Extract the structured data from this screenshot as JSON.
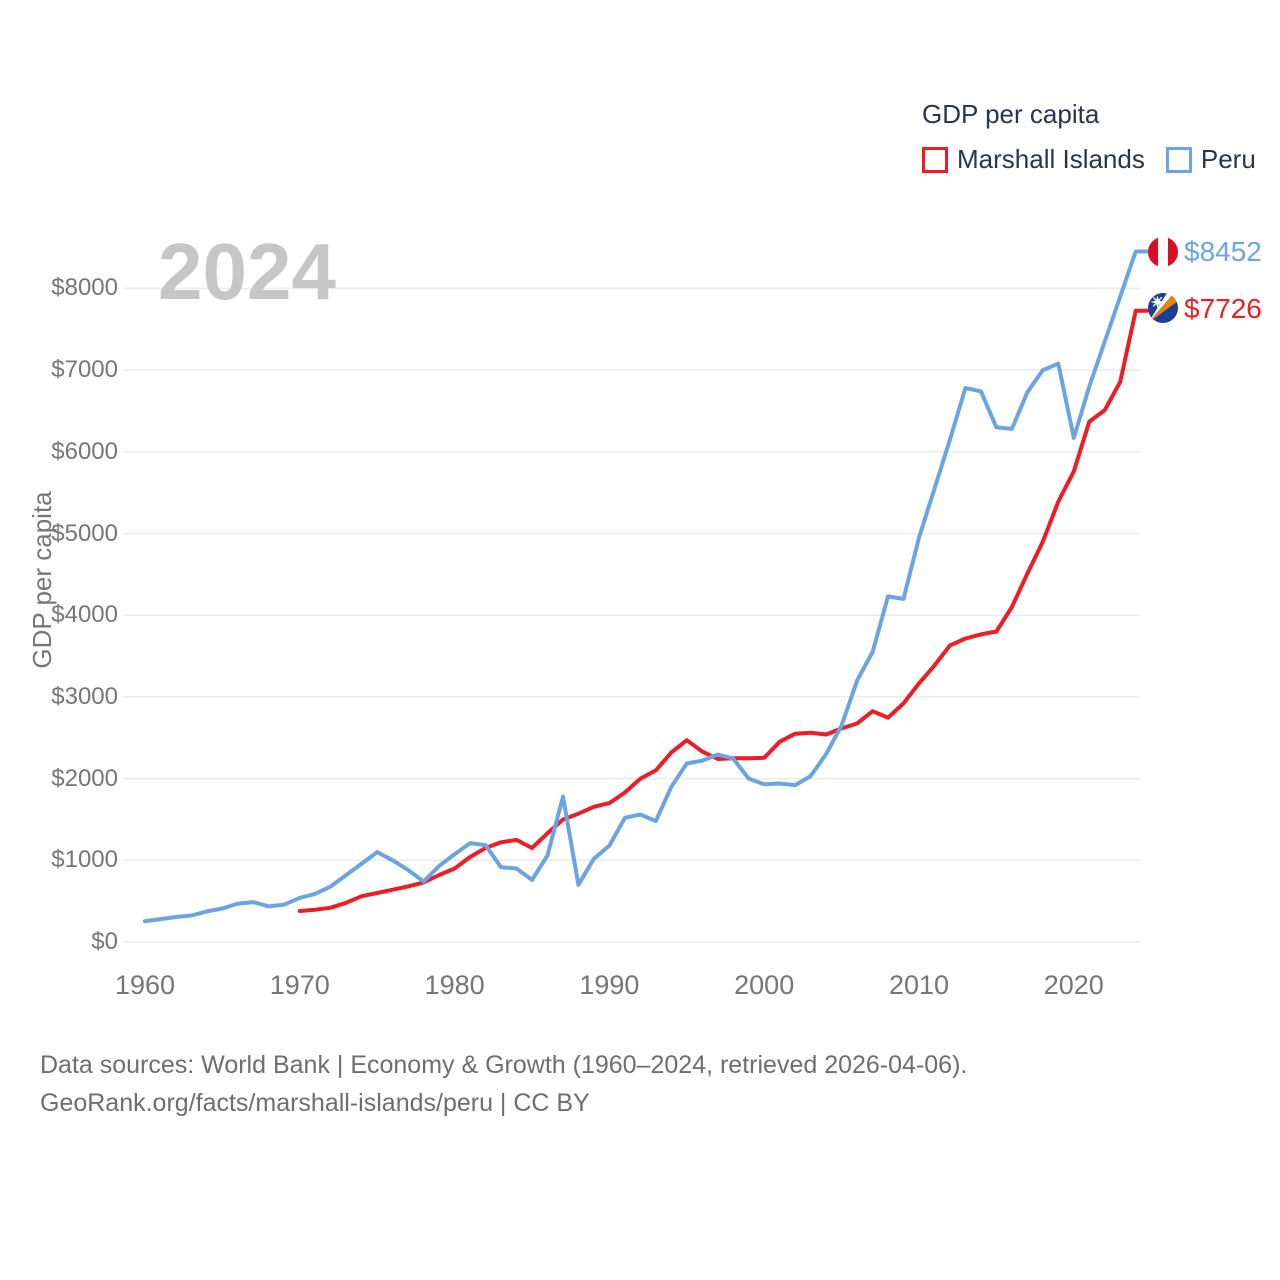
{
  "watermark_year": "2024",
  "source": {
    "line1": "Data sources: World Bank | Economy & Growth (1960–2024, retrieved 2026-04-06).",
    "line2": "GeoRank.org/facts/marshall-islands/peru | CC BY"
  },
  "colors": {
    "marshall_islands_red": "#ee1c23",
    "peru_blue": "#6aa4e2",
    "legend_text": "#26374b",
    "axis_text": "#767676",
    "gridline": "#ebebeb",
    "watermark": "#c6c6c6",
    "source_text": "#6e6e6e"
  },
  "chart_data": {
    "type": "line",
    "title": "GDP per capita",
    "ylabel": "GDP per capita",
    "watermark": "2024",
    "xlim": [
      1960,
      2024
    ],
    "ylim": [
      0,
      8550
    ],
    "grid": "horizontal",
    "legend_position": "top-right",
    "x_ticks": [
      {
        "label": "1960",
        "v": 1960
      },
      {
        "label": "1970",
        "v": 1970
      },
      {
        "label": "1980",
        "v": 1980
      },
      {
        "label": "1990",
        "v": 1990
      },
      {
        "label": "2000",
        "v": 2000
      },
      {
        "label": "2010",
        "v": 2010
      },
      {
        "label": "2020",
        "v": 2020
      }
    ],
    "y_ticks": [
      {
        "label": "$0",
        "v": 0
      },
      {
        "label": "$1000",
        "v": 1000
      },
      {
        "label": "$2000",
        "v": 2000
      },
      {
        "label": "$3000",
        "v": 3000
      },
      {
        "label": "$4000",
        "v": 4000
      },
      {
        "label": "$5000",
        "v": 5000
      },
      {
        "label": "$6000",
        "v": 6000
      },
      {
        "label": "$7000",
        "v": 7000
      },
      {
        "label": "$8000",
        "v": 8000
      }
    ],
    "series": [
      {
        "name": "Marshall Islands",
        "slug": "marshall-islands",
        "color": "#ee1c23",
        "end_label": "$7726",
        "end_value": 7726,
        "flag_icon": "marshall-islands-flag",
        "x": [
          1970,
          1971,
          1972,
          1973,
          1974,
          1975,
          1976,
          1977,
          1978,
          1979,
          1980,
          1981,
          1982,
          1983,
          1984,
          1985,
          1986,
          1987,
          1988,
          1989,
          1990,
          1991,
          1992,
          1993,
          1994,
          1995,
          1996,
          1997,
          1998,
          1999,
          2000,
          2001,
          2002,
          2003,
          2004,
          2005,
          2006,
          2007,
          2008,
          2009,
          2010,
          2011,
          2012,
          2013,
          2014,
          2015,
          2016,
          2017,
          2018,
          2019,
          2020,
          2021,
          2022,
          2023,
          2024
        ],
        "values": [
          380,
          395,
          420,
          480,
          560,
          600,
          640,
          680,
          730,
          820,
          900,
          1040,
          1150,
          1220,
          1250,
          1150,
          1330,
          1500,
          1570,
          1655,
          1700,
          1830,
          2000,
          2100,
          2320,
          2470,
          2330,
          2240,
          2250,
          2250,
          2255,
          2450,
          2550,
          2560,
          2540,
          2615,
          2675,
          2825,
          2745,
          2920,
          3165,
          3385,
          3630,
          3715,
          3765,
          3800,
          4100,
          4510,
          4900,
          5390,
          5760,
          6370,
          6510,
          6855,
          7726
        ]
      },
      {
        "name": "Peru",
        "slug": "peru",
        "color": "#6aa4e2",
        "end_label": "$8452",
        "end_value": 8452,
        "flag_icon": "peru-flag",
        "x": [
          1960,
          1961,
          1962,
          1963,
          1964,
          1965,
          1966,
          1967,
          1968,
          1969,
          1970,
          1971,
          1972,
          1973,
          1974,
          1975,
          1976,
          1977,
          1978,
          1979,
          1980,
          1981,
          1982,
          1983,
          1984,
          1985,
          1986,
          1987,
          1988,
          1989,
          1990,
          1991,
          1992,
          1993,
          1994,
          1995,
          1996,
          1997,
          1998,
          1999,
          2000,
          2001,
          2002,
          2003,
          2004,
          2005,
          2006,
          2007,
          2008,
          2009,
          2010,
          2011,
          2012,
          2013,
          2014,
          2015,
          2016,
          2017,
          2018,
          2019,
          2020,
          2021,
          2022,
          2023,
          2024
        ],
        "values": [
          255,
          280,
          306,
          324,
          374,
          410,
          470,
          488,
          436,
          458,
          540,
          590,
          680,
          820,
          960,
          1100,
          1000,
          880,
          740,
          930,
          1075,
          1210,
          1185,
          915,
          900,
          760,
          1060,
          1780,
          700,
          1020,
          1180,
          1520,
          1560,
          1480,
          1900,
          2185,
          2220,
          2295,
          2245,
          2000,
          1930,
          1940,
          1920,
          2030,
          2300,
          2650,
          3200,
          3550,
          4230,
          4200,
          4950,
          5550,
          6150,
          6780,
          6740,
          6300,
          6280,
          6730,
          7000,
          7080,
          6170,
          6800,
          7350,
          7900,
          8452
        ]
      }
    ]
  }
}
